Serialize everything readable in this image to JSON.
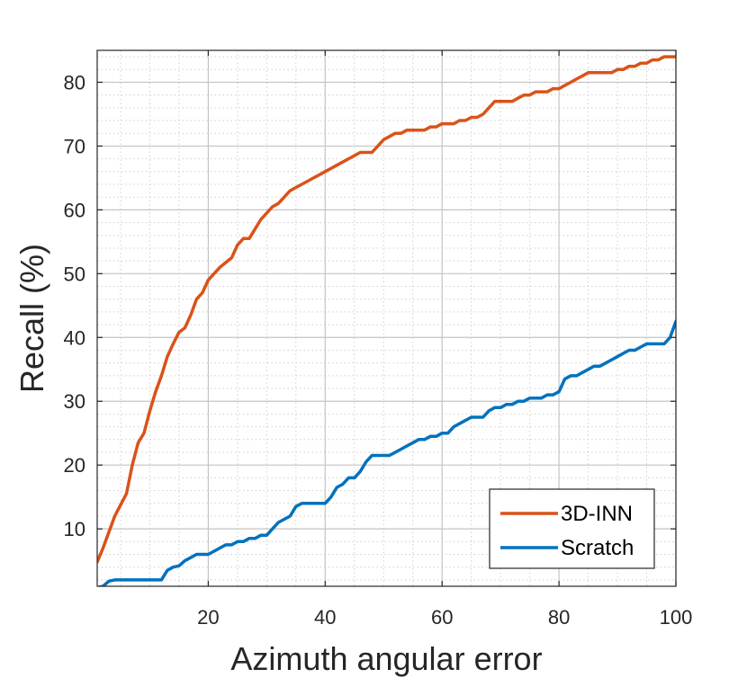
{
  "chart_data": {
    "type": "line",
    "title": "",
    "xlabel": "Azimuth angular error",
    "ylabel": "Recall (%)",
    "xlim": [
      1,
      100
    ],
    "ylim": [
      1,
      85
    ],
    "xticks": [
      20,
      40,
      60,
      80,
      100
    ],
    "yticks": [
      10,
      20,
      30,
      40,
      50,
      60,
      70,
      80
    ],
    "grid": true,
    "minor_grid": true,
    "legend_position": "bottom-right",
    "series": [
      {
        "name": "3D-INN",
        "color": "#D95319",
        "x": [
          1,
          2,
          4,
          6,
          7,
          8,
          9,
          10,
          11,
          12,
          13,
          14,
          15,
          16,
          17,
          18,
          19,
          20,
          22,
          24,
          25,
          26,
          27,
          28,
          29,
          30,
          31,
          32,
          33,
          34,
          35,
          36,
          37,
          38,
          39,
          40,
          41,
          42,
          43,
          44,
          45,
          46,
          47,
          48,
          49,
          50,
          51,
          52,
          53,
          54,
          55,
          56,
          57,
          58,
          59,
          60,
          61,
          62,
          63,
          64,
          65,
          66,
          67,
          68,
          69,
          70,
          71,
          72,
          73,
          74,
          75,
          76,
          77,
          78,
          79,
          80,
          81,
          82,
          83,
          84,
          85,
          86,
          87,
          88,
          89,
          90,
          91,
          92,
          93,
          94,
          95,
          96,
          97,
          98,
          99,
          100
        ],
        "y": [
          4.8,
          7,
          12,
          15.5,
          20,
          23.5,
          25,
          28.5,
          31.5,
          34,
          37,
          39,
          40.8,
          41.5,
          43.5,
          46,
          47,
          49,
          51,
          52.5,
          54.5,
          55.5,
          55.5,
          57,
          58.5,
          59.5,
          60.5,
          61,
          62,
          63,
          63.5,
          64,
          64.5,
          65,
          65.5,
          66,
          66.5,
          67,
          67.5,
          68,
          68.5,
          69,
          69,
          69,
          70,
          71,
          71.5,
          72,
          72,
          72.5,
          72.5,
          72.5,
          72.5,
          73,
          73,
          73.5,
          73.5,
          73.5,
          74,
          74,
          74.5,
          74.5,
          75,
          76,
          77,
          77,
          77,
          77,
          77.5,
          78,
          78,
          78.5,
          78.5,
          78.5,
          79,
          79,
          79.5,
          80,
          80.5,
          81,
          81.5,
          81.5,
          81.5,
          81.5,
          81.5,
          82,
          82,
          82.5,
          82.5,
          83,
          83,
          83.5,
          83.5,
          84,
          84,
          84
        ]
      },
      {
        "name": "Scratch",
        "color": "#0072BD",
        "x": [
          1,
          2,
          3,
          4,
          6,
          8,
          10,
          12,
          13,
          14,
          15,
          16,
          17,
          18,
          19,
          20,
          21,
          22,
          23,
          24,
          25,
          26,
          27,
          28,
          29,
          30,
          31,
          32,
          33,
          34,
          35,
          36,
          37,
          38,
          39,
          40,
          41,
          42,
          43,
          44,
          45,
          46,
          47,
          48,
          49,
          50,
          51,
          52,
          53,
          54,
          55,
          56,
          57,
          58,
          59,
          60,
          61,
          62,
          63,
          64,
          65,
          66,
          67,
          68,
          69,
          70,
          71,
          72,
          73,
          74,
          75,
          76,
          77,
          78,
          79,
          80,
          81,
          82,
          83,
          84,
          85,
          86,
          87,
          88,
          89,
          90,
          91,
          92,
          93,
          94,
          95,
          96,
          97,
          98,
          99,
          100
        ],
        "y": [
          0.8,
          1,
          1.8,
          2,
          2,
          2,
          2,
          2,
          3.5,
          4,
          4.2,
          5,
          5.5,
          6,
          6,
          6,
          6.5,
          7,
          7.5,
          7.5,
          8,
          8,
          8.5,
          8.5,
          9,
          9,
          10,
          11,
          11.5,
          12,
          13.5,
          14,
          14,
          14,
          14,
          14,
          15,
          16.5,
          17,
          18,
          18,
          19,
          20.5,
          21.5,
          21.5,
          21.5,
          21.5,
          22,
          22.5,
          23,
          23.5,
          24,
          24,
          24.5,
          24.5,
          25,
          25,
          26,
          26.5,
          27,
          27.5,
          27.5,
          27.5,
          28.5,
          29,
          29,
          29.5,
          29.5,
          30,
          30,
          30.5,
          30.5,
          30.5,
          31,
          31,
          31.5,
          33.5,
          34,
          34,
          34.5,
          35,
          35.5,
          35.5,
          36,
          36.5,
          37,
          37.5,
          38,
          38,
          38.5,
          39,
          39,
          39,
          39,
          40,
          42.5
        ]
      }
    ]
  }
}
